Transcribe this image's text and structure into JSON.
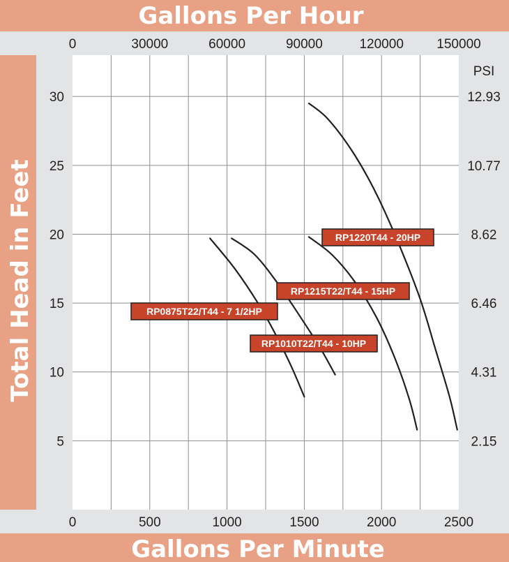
{
  "colors": {
    "band": "#e8a184",
    "strip": "#e3e4e5",
    "grid": "#8d8d8d",
    "curve": "#231f20",
    "label_fill": "#c7432a",
    "label_stroke": "#231f20"
  },
  "chart_data": {
    "type": "line",
    "title": "Gallons Per Hour",
    "xlabel": "Gallons Per Minute",
    "ylabel": "Total Head in Feet",
    "top_axis_label": "Gallons Per Hour",
    "right_axis_unit": "PSI",
    "x_ticks": [
      "0",
      "500",
      "1000",
      "1500",
      "2000",
      "2500"
    ],
    "top_ticks": [
      "0",
      "30000",
      "60000",
      "90000",
      "120000",
      "150000"
    ],
    "y_ticks": [
      "5",
      "10",
      "15",
      "20",
      "25",
      "30"
    ],
    "psi_ticks": [
      "2.15",
      "4.31",
      "6.46",
      "8.62",
      "10.77",
      "12.93"
    ],
    "xlim": [
      0,
      2500
    ],
    "ylim": [
      0,
      33
    ],
    "grid": true,
    "series": [
      {
        "name": "RP0875T22/T44 - 7 1/2HP",
        "points": [
          [
            890,
            19.7
          ],
          [
            1050,
            17.5
          ],
          [
            1200,
            15.0
          ],
          [
            1320,
            12.6
          ],
          [
            1420,
            10.3
          ],
          [
            1500,
            8.2
          ]
        ]
      },
      {
        "name": "RP1010T22/T44 - 10HP",
        "points": [
          [
            1030,
            19.7
          ],
          [
            1180,
            18.5
          ],
          [
            1330,
            16.4
          ],
          [
            1480,
            13.9
          ],
          [
            1600,
            11.8
          ],
          [
            1700,
            9.8
          ]
        ]
      },
      {
        "name": "RP1215T22/T44 - 15HP",
        "points": [
          [
            1530,
            19.8
          ],
          [
            1680,
            18.5
          ],
          [
            1830,
            16.5
          ],
          [
            1970,
            13.9
          ],
          [
            2090,
            10.9
          ],
          [
            2180,
            8.0
          ],
          [
            2230,
            5.8
          ]
        ]
      },
      {
        "name": "RP1220T44 - 20HP",
        "points": [
          [
            1530,
            29.5
          ],
          [
            1650,
            28.4
          ],
          [
            1800,
            26.2
          ],
          [
            1950,
            23.3
          ],
          [
            2100,
            19.6
          ],
          [
            2250,
            15.3
          ],
          [
            2350,
            11.6
          ],
          [
            2440,
            8.2
          ],
          [
            2490,
            5.8
          ]
        ]
      }
    ],
    "annotations": [
      {
        "text": "RP0875T22/T44 - 7 1/2HP"
      },
      {
        "text": "RP1010T22/T44 - 10HP"
      },
      {
        "text": "RP1215T22/T44 - 15HP"
      },
      {
        "text": "RP1220T44 - 20HP"
      }
    ]
  }
}
